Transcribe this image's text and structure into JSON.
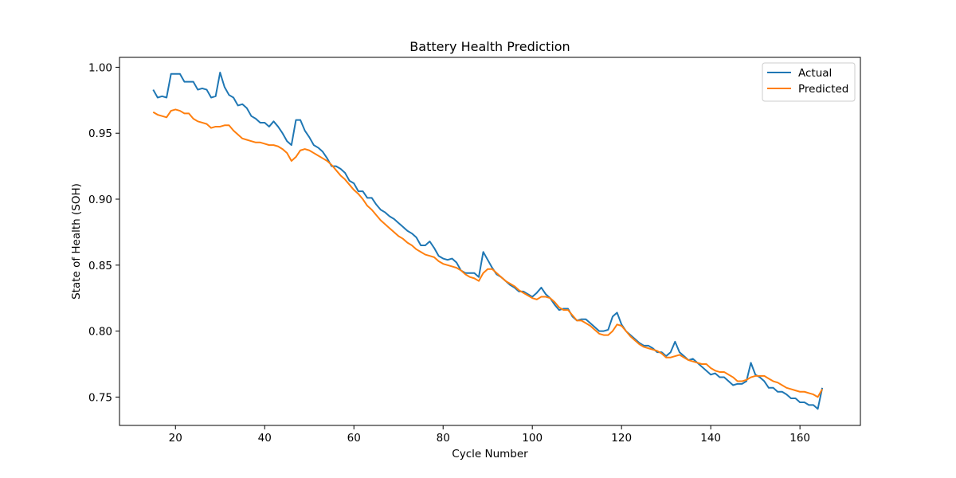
{
  "chart_data": {
    "type": "line",
    "title": "Battery Health Prediction",
    "xlabel": "Cycle Number",
    "ylabel": "State of Health (SOH)",
    "xlim": [
      7.45,
      173.55
    ],
    "ylim": [
      0.7285,
      1.0075
    ],
    "xticks": [
      20,
      40,
      60,
      80,
      100,
      120,
      140,
      160
    ],
    "yticks": [
      0.75,
      0.8,
      0.85,
      0.9,
      0.95,
      1.0
    ],
    "xtick_labels": [
      "20",
      "40",
      "60",
      "80",
      "100",
      "120",
      "140",
      "160"
    ],
    "ytick_labels": [
      "0.75",
      "0.80",
      "0.85",
      "0.90",
      "0.95",
      "1.00"
    ],
    "grid": false,
    "legend_position": "top-right",
    "x_start": 15,
    "series": [
      {
        "name": "Actual",
        "color": "#1f77b4",
        "values": [
          0.983,
          0.977,
          0.978,
          0.977,
          0.995,
          0.995,
          0.995,
          0.989,
          0.989,
          0.989,
          0.983,
          0.984,
          0.983,
          0.977,
          0.978,
          0.996,
          0.985,
          0.979,
          0.977,
          0.971,
          0.972,
          0.969,
          0.963,
          0.961,
          0.958,
          0.958,
          0.955,
          0.959,
          0.955,
          0.95,
          0.944,
          0.941,
          0.96,
          0.96,
          0.952,
          0.947,
          0.941,
          0.939,
          0.936,
          0.931,
          0.925,
          0.925,
          0.923,
          0.92,
          0.914,
          0.912,
          0.906,
          0.906,
          0.901,
          0.901,
          0.896,
          0.892,
          0.89,
          0.887,
          0.885,
          0.882,
          0.879,
          0.876,
          0.874,
          0.871,
          0.865,
          0.865,
          0.868,
          0.863,
          0.857,
          0.855,
          0.854,
          0.855,
          0.852,
          0.846,
          0.844,
          0.844,
          0.844,
          0.841,
          0.86,
          0.854,
          0.848,
          0.843,
          0.841,
          0.838,
          0.835,
          0.833,
          0.83,
          0.83,
          0.828,
          0.826,
          0.829,
          0.833,
          0.828,
          0.825,
          0.82,
          0.816,
          0.817,
          0.817,
          0.811,
          0.808,
          0.809,
          0.809,
          0.806,
          0.803,
          0.8,
          0.8,
          0.801,
          0.811,
          0.814,
          0.805,
          0.8,
          0.797,
          0.794,
          0.791,
          0.789,
          0.789,
          0.787,
          0.784,
          0.784,
          0.781,
          0.784,
          0.792,
          0.784,
          0.781,
          0.778,
          0.779,
          0.776,
          0.773,
          0.77,
          0.767,
          0.768,
          0.765,
          0.765,
          0.762,
          0.759,
          0.76,
          0.76,
          0.762,
          0.776,
          0.767,
          0.765,
          0.762,
          0.757,
          0.757,
          0.754,
          0.754,
          0.752,
          0.749,
          0.749,
          0.746,
          0.746,
          0.744,
          0.744,
          0.741,
          0.757
        ]
      },
      {
        "name": "Predicted",
        "color": "#ff7f0e",
        "values": [
          0.966,
          0.964,
          0.963,
          0.962,
          0.967,
          0.968,
          0.967,
          0.965,
          0.965,
          0.961,
          0.959,
          0.958,
          0.957,
          0.954,
          0.955,
          0.955,
          0.956,
          0.956,
          0.952,
          0.949,
          0.946,
          0.945,
          0.944,
          0.943,
          0.943,
          0.942,
          0.941,
          0.941,
          0.94,
          0.938,
          0.935,
          0.929,
          0.932,
          0.937,
          0.938,
          0.937,
          0.935,
          0.933,
          0.931,
          0.929,
          0.926,
          0.922,
          0.918,
          0.915,
          0.911,
          0.907,
          0.904,
          0.9,
          0.895,
          0.892,
          0.888,
          0.884,
          0.881,
          0.878,
          0.875,
          0.872,
          0.87,
          0.867,
          0.865,
          0.862,
          0.86,
          0.858,
          0.857,
          0.856,
          0.853,
          0.851,
          0.85,
          0.849,
          0.848,
          0.846,
          0.843,
          0.841,
          0.84,
          0.838,
          0.844,
          0.847,
          0.847,
          0.844,
          0.841,
          0.838,
          0.836,
          0.834,
          0.831,
          0.829,
          0.827,
          0.825,
          0.824,
          0.826,
          0.826,
          0.825,
          0.822,
          0.818,
          0.816,
          0.816,
          0.812,
          0.808,
          0.808,
          0.806,
          0.804,
          0.801,
          0.798,
          0.797,
          0.797,
          0.8,
          0.805,
          0.804,
          0.8,
          0.796,
          0.793,
          0.79,
          0.788,
          0.787,
          0.786,
          0.785,
          0.783,
          0.78,
          0.78,
          0.781,
          0.782,
          0.78,
          0.778,
          0.777,
          0.776,
          0.775,
          0.775,
          0.772,
          0.77,
          0.769,
          0.769,
          0.767,
          0.765,
          0.762,
          0.762,
          0.763,
          0.765,
          0.766,
          0.766,
          0.766,
          0.764,
          0.762,
          0.761,
          0.759,
          0.757,
          0.756,
          0.755,
          0.754,
          0.754,
          0.753,
          0.752,
          0.75,
          0.756
        ]
      }
    ]
  }
}
